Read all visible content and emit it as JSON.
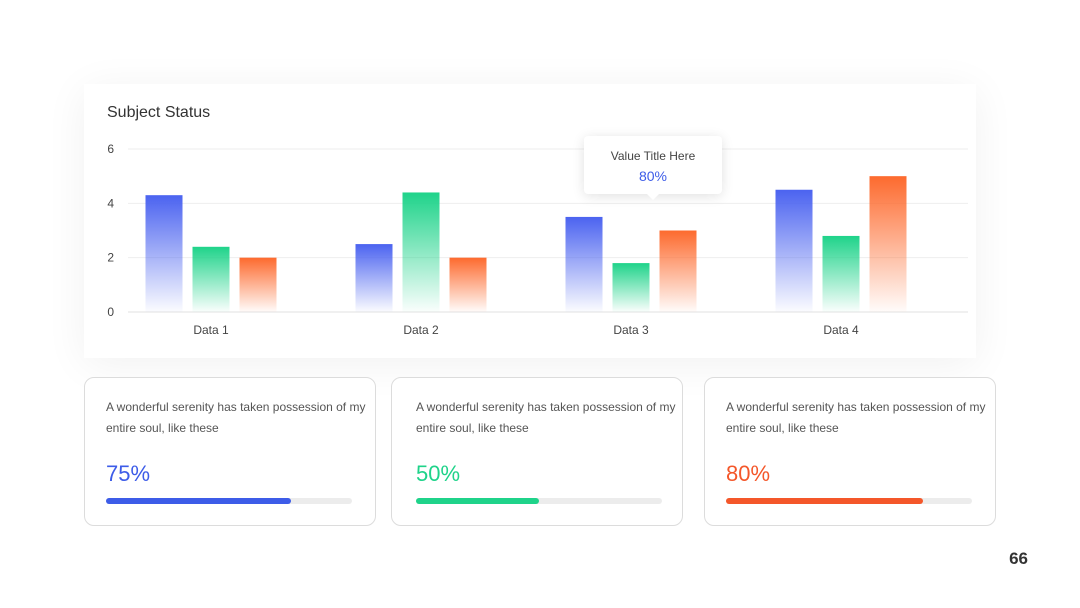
{
  "chart_data": {
    "type": "bar",
    "title": "Subject Status",
    "categories": [
      "Data 1",
      "Data 2",
      "Data 3",
      "Data 4"
    ],
    "series": [
      {
        "color": "#4b63f0",
        "values": [
          4.3,
          2.5,
          3.5,
          4.5
        ]
      },
      {
        "color": "#1fd38a",
        "values": [
          2.4,
          4.4,
          1.8,
          2.8
        ]
      },
      {
        "color": "#fd6a2e",
        "values": [
          2.0,
          2.0,
          3.0,
          5.0
        ]
      }
    ],
    "ylim": [
      0,
      6
    ],
    "yticks": [
      0,
      2,
      4,
      6
    ],
    "grid": true
  },
  "tooltip": {
    "title": "Value Title Here",
    "value": "80%",
    "color": "#3d5ce8"
  },
  "stats": [
    {
      "text": "A wonderful serenity has taken possession of my entire soul, like these",
      "value": "75%",
      "percent": 75,
      "color": "#3d5ce8"
    },
    {
      "text": "A wonderful serenity has taken possession of my entire soul, like these",
      "value": "50%",
      "percent": 50,
      "color": "#1fd38a"
    },
    {
      "text": "A wonderful serenity has taken possession of my entire soul, like these",
      "value": "80%",
      "percent": 80,
      "color": "#f4572a"
    }
  ],
  "page_number": "66"
}
